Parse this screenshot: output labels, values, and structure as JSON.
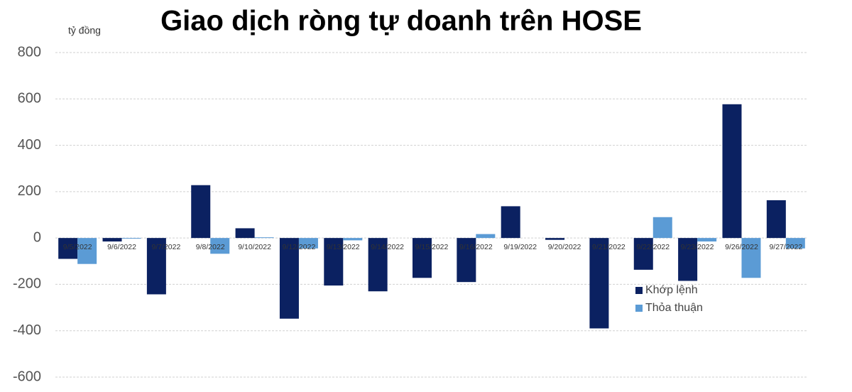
{
  "chart_data": {
    "type": "bar",
    "title": "Giao dịch ròng tự doanh trên HOSE",
    "y_label": "tỷ đồng",
    "categories": [
      "9/5/2022",
      "9/6/2022",
      "9/7/2022",
      "9/8/2022",
      "9/10/2022",
      "9/12/2022",
      "9/13/2022",
      "9/14/2022",
      "9/15/2022",
      "9/16/2022",
      "9/19/2022",
      "9/20/2022",
      "9/21/2022",
      "9/22/2022",
      "9/23/2022",
      "9/26/2022",
      "9/27/2022"
    ],
    "series": [
      {
        "name": "Khớp lệnh",
        "color": "#0b2161",
        "values": [
          -90,
          -15,
          -243,
          228,
          42,
          -348,
          -205,
          -230,
          -172,
          -190,
          137,
          -8,
          -390,
          -137,
          -185,
          577,
          163
        ]
      },
      {
        "name": "Thỏa thuận",
        "color": "#5b9bd5",
        "values": [
          -112,
          -3,
          0,
          -68,
          3,
          -45,
          -10,
          0,
          0,
          17,
          0,
          0,
          0,
          90,
          -15,
          -172,
          -45
        ]
      }
    ],
    "ylim": [
      -600,
      800
    ],
    "yticks": [
      -600,
      -400,
      -200,
      0,
      200,
      400,
      600,
      800
    ],
    "grid": true
  }
}
